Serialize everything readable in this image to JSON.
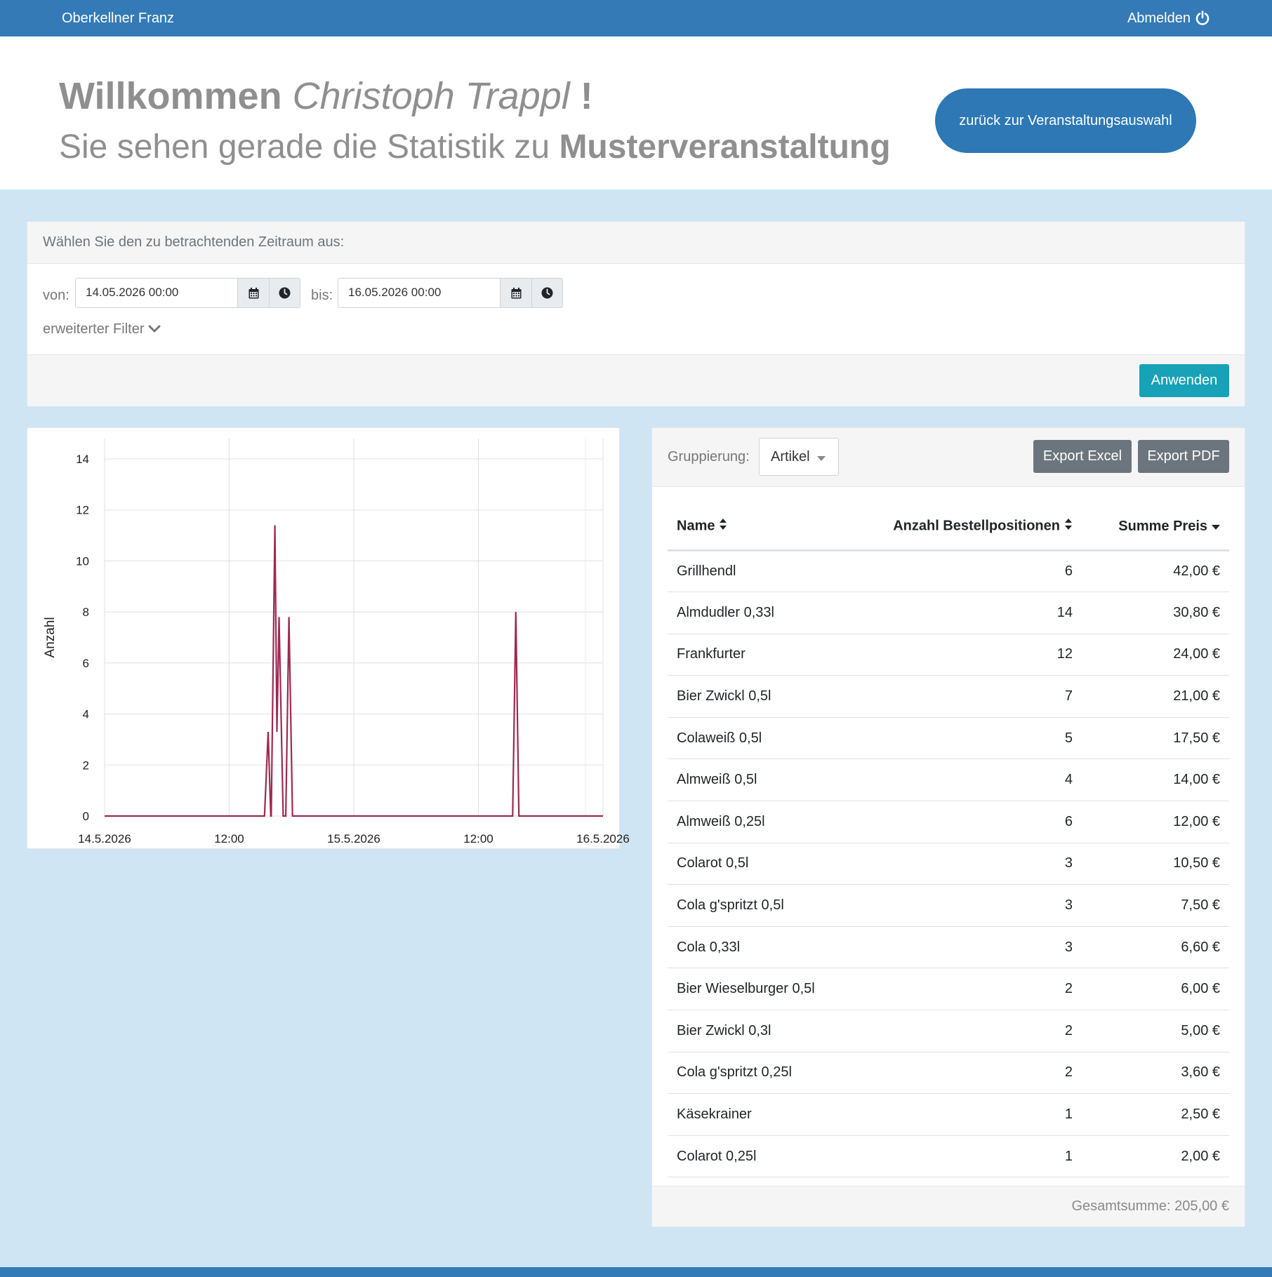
{
  "navbar": {
    "user": "Oberkellner Franz",
    "logout_label": "Abmelden",
    "logout_icon": "power-icon"
  },
  "hero": {
    "welcome": "Willkommen",
    "name": "Christoph Trappl",
    "exclamation": "!",
    "subtitle_prefix": "Sie sehen gerade die Statistik zu",
    "event_name": "Musterveranstaltung",
    "back_button": "zurück zur Veranstaltungsauswahl"
  },
  "filter": {
    "heading": "Wählen Sie den zu betrachtenden Zeitraum aus:",
    "from_label": "von:",
    "from_value": "14.05.2026 00:00",
    "to_label": "bis:",
    "to_value": "16.05.2026 00:00",
    "extended_filter": "erweiterter Filter",
    "apply_button": "Anwenden"
  },
  "chart_data": {
    "type": "line",
    "ylabel": "Anzahl",
    "xlabel": "",
    "ylim": [
      0,
      14
    ],
    "y_ticks": [
      0,
      2,
      4,
      6,
      8,
      10,
      12,
      14
    ],
    "x_ticks": [
      "14.5.2026",
      "12:00",
      "15.5.2026",
      "12:00",
      "16.5.2026"
    ],
    "x_range_hours": [
      0,
      48
    ],
    "grid": true,
    "color": "#9c2a52",
    "series": [
      {
        "values": [
          {
            "x": 15.4,
            "y": 0
          },
          {
            "x": 15.75,
            "y": 3.3
          },
          {
            "x": 16.0,
            "y": 0
          },
          {
            "x": 16.05,
            "y": 0
          },
          {
            "x": 16.4,
            "y": 11.4
          },
          {
            "x": 16.6,
            "y": 3.3
          },
          {
            "x": 16.8,
            "y": 7.8
          },
          {
            "x": 17.2,
            "y": 0
          },
          {
            "x": 17.45,
            "y": 0
          },
          {
            "x": 17.75,
            "y": 7.8
          },
          {
            "x": 18.1,
            "y": 0
          },
          {
            "x": 39.3,
            "y": 0
          },
          {
            "x": 39.6,
            "y": 8
          },
          {
            "x": 39.9,
            "y": 0
          }
        ]
      }
    ]
  },
  "table": {
    "grouping_label": "Gruppierung:",
    "grouping_value": "Artikel",
    "export_excel": "Export Excel",
    "export_pdf": "Export PDF",
    "columns": [
      "Name",
      "Anzahl Bestellpositionen",
      "Summe Preis"
    ],
    "rows": [
      {
        "name": "Grillhendl",
        "count": "6",
        "sum": "42,00 €"
      },
      {
        "name": "Almdudler 0,33l",
        "count": "14",
        "sum": "30,80 €"
      },
      {
        "name": "Frankfurter",
        "count": "12",
        "sum": "24,00 €"
      },
      {
        "name": "Bier Zwickl 0,5l",
        "count": "7",
        "sum": "21,00 €"
      },
      {
        "name": "Colaweiß 0,5l",
        "count": "5",
        "sum": "17,50 €"
      },
      {
        "name": "Almweiß 0,5l",
        "count": "4",
        "sum": "14,00 €"
      },
      {
        "name": "Almweiß 0,25l",
        "count": "6",
        "sum": "12,00 €"
      },
      {
        "name": "Colarot 0,5l",
        "count": "3",
        "sum": "10,50 €"
      },
      {
        "name": "Cola g'spritzt 0,5l",
        "count": "3",
        "sum": "7,50 €"
      },
      {
        "name": "Cola 0,33l",
        "count": "3",
        "sum": "6,60 €"
      },
      {
        "name": "Bier Wieselburger 0,5l",
        "count": "2",
        "sum": "6,00 €"
      },
      {
        "name": "Bier Zwickl 0,3l",
        "count": "2",
        "sum": "5,00 €"
      },
      {
        "name": "Cola g'spritzt 0,25l",
        "count": "2",
        "sum": "3,60 €"
      },
      {
        "name": "Käsekrainer",
        "count": "1",
        "sum": "2,50 €"
      },
      {
        "name": "Colarot 0,25l",
        "count": "1",
        "sum": "2,00 €"
      }
    ],
    "total": "Gesamtsumme: 205,00 €"
  }
}
